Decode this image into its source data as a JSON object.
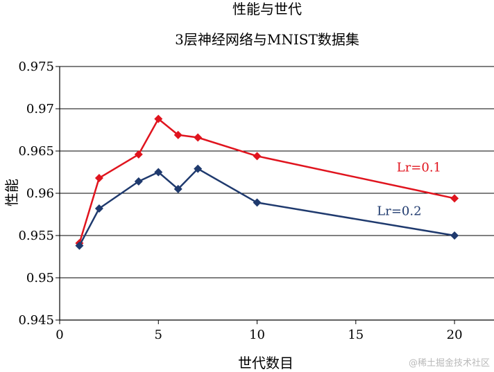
{
  "chart_data": {
    "type": "line",
    "title": "性能与世代",
    "subtitle": "3层神经网络与MNIST数据集",
    "xlabel": "世代数目",
    "ylabel": "性能",
    "xlim": [
      0,
      22
    ],
    "ylim": [
      0.945,
      0.975
    ],
    "x_ticks": [
      0,
      5,
      10,
      15,
      20
    ],
    "x_tick_labels": [
      "0",
      "5",
      "10",
      "15",
      "20"
    ],
    "y_ticks": [
      0.945,
      0.95,
      0.955,
      0.96,
      0.965,
      0.97,
      0.975
    ],
    "y_tick_labels": [
      "0.945",
      "0.95",
      "0.955",
      "0.96",
      "0.965",
      "0.97",
      "0.975"
    ],
    "grid": true,
    "series": [
      {
        "name": "Lr=0.1",
        "color": "#e0141e",
        "x": [
          1,
          2,
          4,
          5,
          6,
          7,
          10,
          20
        ],
        "y": [
          0.9541,
          0.9618,
          0.9646,
          0.9688,
          0.9669,
          0.9666,
          0.9644,
          0.9594
        ]
      },
      {
        "name": "Lr=0.2",
        "color": "#1f3a6e",
        "x": [
          1,
          2,
          4,
          5,
          6,
          7,
          10,
          20
        ],
        "y": [
          0.9538,
          0.9582,
          0.9614,
          0.9625,
          0.9605,
          0.9629,
          0.9589,
          0.955
        ]
      }
    ],
    "series_labels": [
      {
        "text": "Lr=0.1",
        "at_x": 18.2,
        "at_y": 0.9626
      },
      {
        "text": "Lr=0.2",
        "at_x": 17.2,
        "at_y": 0.9574
      }
    ]
  },
  "watermark": "@稀土掘金技术社区"
}
